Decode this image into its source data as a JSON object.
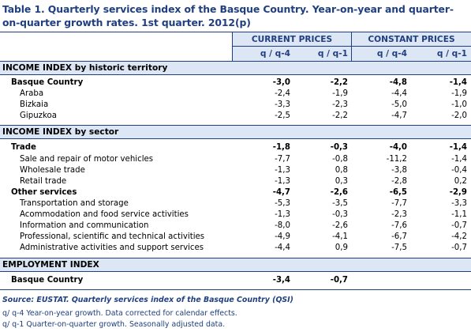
{
  "title": "Table 1. Quarterly services index of the Basque Country. Year-on-year and quarter-on-quarter growth rates. 1st quarter. 2012(p)",
  "header": {
    "group1": "CURRENT PRICES",
    "group2": "CONSTANT PRICES",
    "cols": [
      "q / q-4",
      "q / q-1",
      "q / q-4",
      "q / q-1"
    ]
  },
  "sections": [
    {
      "title": "INCOME INDEX by historic territory",
      "rows": [
        {
          "label": "Basque Country",
          "bold": true,
          "indent": 1,
          "values": [
            "-3,0",
            "-2,2",
            "-4,8",
            "-1,4"
          ]
        },
        {
          "label": "Araba",
          "bold": false,
          "indent": 2,
          "values": [
            "-2,4",
            "-1,9",
            "-4,4",
            "-1,9"
          ]
        },
        {
          "label": "Bizkaia",
          "bold": false,
          "indent": 2,
          "values": [
            "-3,3",
            "-2,3",
            "-5,0",
            "-1,0"
          ]
        },
        {
          "label": "Gipuzkoa",
          "bold": false,
          "indent": 2,
          "values": [
            "-2,5",
            "-2,2",
            "-4,7",
            "-2,0"
          ]
        }
      ]
    },
    {
      "title": "INCOME INDEX by sector",
      "rows": [
        {
          "label": "Trade",
          "bold": true,
          "indent": 1,
          "values": [
            "-1,8",
            "-0,3",
            "-4,0",
            "-1,4"
          ]
        },
        {
          "label": "Sale and repair of motor vehicles",
          "bold": false,
          "indent": 2,
          "values": [
            "-7,7",
            "-0,8",
            "-11,2",
            "-1,4"
          ]
        },
        {
          "label": "Wholesale trade",
          "bold": false,
          "indent": 2,
          "values": [
            "-1,3",
            "0,8",
            "-3,8",
            "-0,4"
          ]
        },
        {
          "label": "Retail trade",
          "bold": false,
          "indent": 2,
          "values": [
            "-1,3",
            "0,3",
            "-2,8",
            "0,2"
          ]
        },
        {
          "label": "Other services",
          "bold": true,
          "indent": 1,
          "values": [
            "-4,7",
            "-2,6",
            "-6,5",
            "-2,9"
          ]
        },
        {
          "label": "Transportation and storage",
          "bold": false,
          "indent": 2,
          "values": [
            "-5,3",
            "-3,5",
            "-7,7",
            "-3,3"
          ]
        },
        {
          "label": "Acommodation and food service activities",
          "bold": false,
          "indent": 2,
          "values": [
            "-1,3",
            "-0,3",
            "-2,3",
            "-1,1"
          ]
        },
        {
          "label": "Information and communication",
          "bold": false,
          "indent": 2,
          "values": [
            "-8,0",
            "-2,6",
            "-7,6",
            "-0,7"
          ]
        },
        {
          "label": "Professional, scientific and technical activities",
          "bold": false,
          "indent": 2,
          "values": [
            "-4,9",
            "-4,1",
            "-6,7",
            "-4,2"
          ]
        },
        {
          "label": "Administrative activities and support services",
          "bold": false,
          "indent": 2,
          "values": [
            "-4,4",
            "0,9",
            "-7,5",
            "-0,7"
          ]
        }
      ]
    },
    {
      "title": "EMPLOYMENT INDEX",
      "rows": [
        {
          "label": "Basque Country",
          "bold": true,
          "indent": 1,
          "values": [
            "-3,4",
            "-0,7",
            "",
            ""
          ]
        }
      ]
    }
  ],
  "footnotes": {
    "source": "Source: EUSTAT. Quarterly services index of the Basque Country (QSI)",
    "note1": "q/ q-4 Year-on-year growth. Data corrected for calendar effects.",
    "note2": "q/ q-1 Quarter-on-quarter growth. Seasonally adjusted data."
  }
}
